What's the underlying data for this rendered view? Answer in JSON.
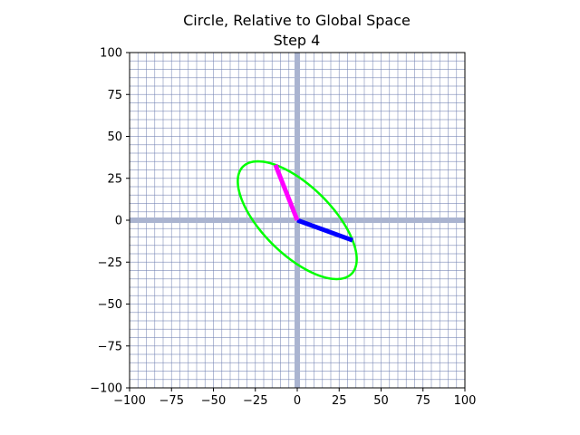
{
  "chart_data": {
    "type": "line",
    "title": "Circle, Relative to Global Space",
    "subtitle": "Step 4",
    "xlabel": "",
    "ylabel": "",
    "xlim": [
      -100,
      100
    ],
    "ylim": [
      -100,
      100
    ],
    "xticks": [
      -100,
      -75,
      -50,
      -25,
      0,
      25,
      50,
      75,
      100
    ],
    "yticks": [
      -100,
      -75,
      -50,
      -25,
      0,
      25,
      50,
      75,
      100
    ],
    "xtick_labels": [
      "−100",
      "−75",
      "−50",
      "−25",
      "0",
      "25",
      "50",
      "75",
      "100"
    ],
    "ytick_labels": [
      "−100",
      "−75",
      "−50",
      "−25",
      "0",
      "25",
      "50",
      "75",
      "100"
    ],
    "grid": true,
    "minor_grid_step": 5,
    "series": [
      {
        "kind": "ellipse",
        "color": "#00ff00",
        "basis_a": [
          33,
          -12
        ],
        "basis_b": [
          -13,
          33
        ]
      },
      {
        "kind": "vector",
        "color": "#0000ff",
        "from": [
          0,
          0
        ],
        "to": [
          33,
          -12
        ]
      },
      {
        "kind": "vector",
        "color": "#ff00ff",
        "from": [
          0,
          0
        ],
        "to": [
          -13,
          33
        ]
      }
    ],
    "axis_line_color": "#aab4d0",
    "grid_color": "#6f7fb0"
  }
}
